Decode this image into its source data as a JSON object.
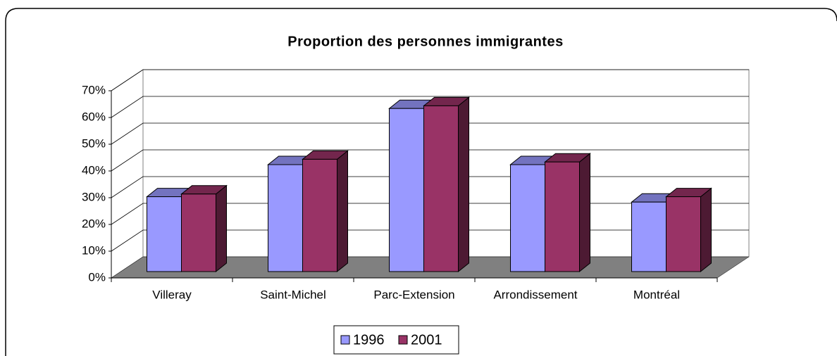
{
  "chart_data": {
    "type": "bar3d",
    "title": "Proportion des personnes immigrantes",
    "categories": [
      "Villeray",
      "Saint-Michel",
      "Parc-Extension",
      "Arrondissement",
      "Montréal"
    ],
    "series": [
      {
        "name": "1996",
        "color": "#9999ff",
        "values": [
          28,
          40,
          61,
          40,
          26
        ]
      },
      {
        "name": "2001",
        "color": "#993366",
        "values": [
          29,
          42,
          62,
          41,
          28
        ]
      }
    ],
    "ylim": [
      0,
      70
    ],
    "yticks": [
      {
        "value": 0,
        "label": "0%"
      },
      {
        "value": 10,
        "label": "10%"
      },
      {
        "value": 20,
        "label": "20%"
      },
      {
        "value": 30,
        "label": "30%"
      },
      {
        "value": 40,
        "label": "40%"
      },
      {
        "value": 50,
        "label": "50%"
      },
      {
        "value": 60,
        "label": "60%"
      },
      {
        "value": 70,
        "label": "70%"
      }
    ],
    "grid": true,
    "legend": "bottom"
  }
}
